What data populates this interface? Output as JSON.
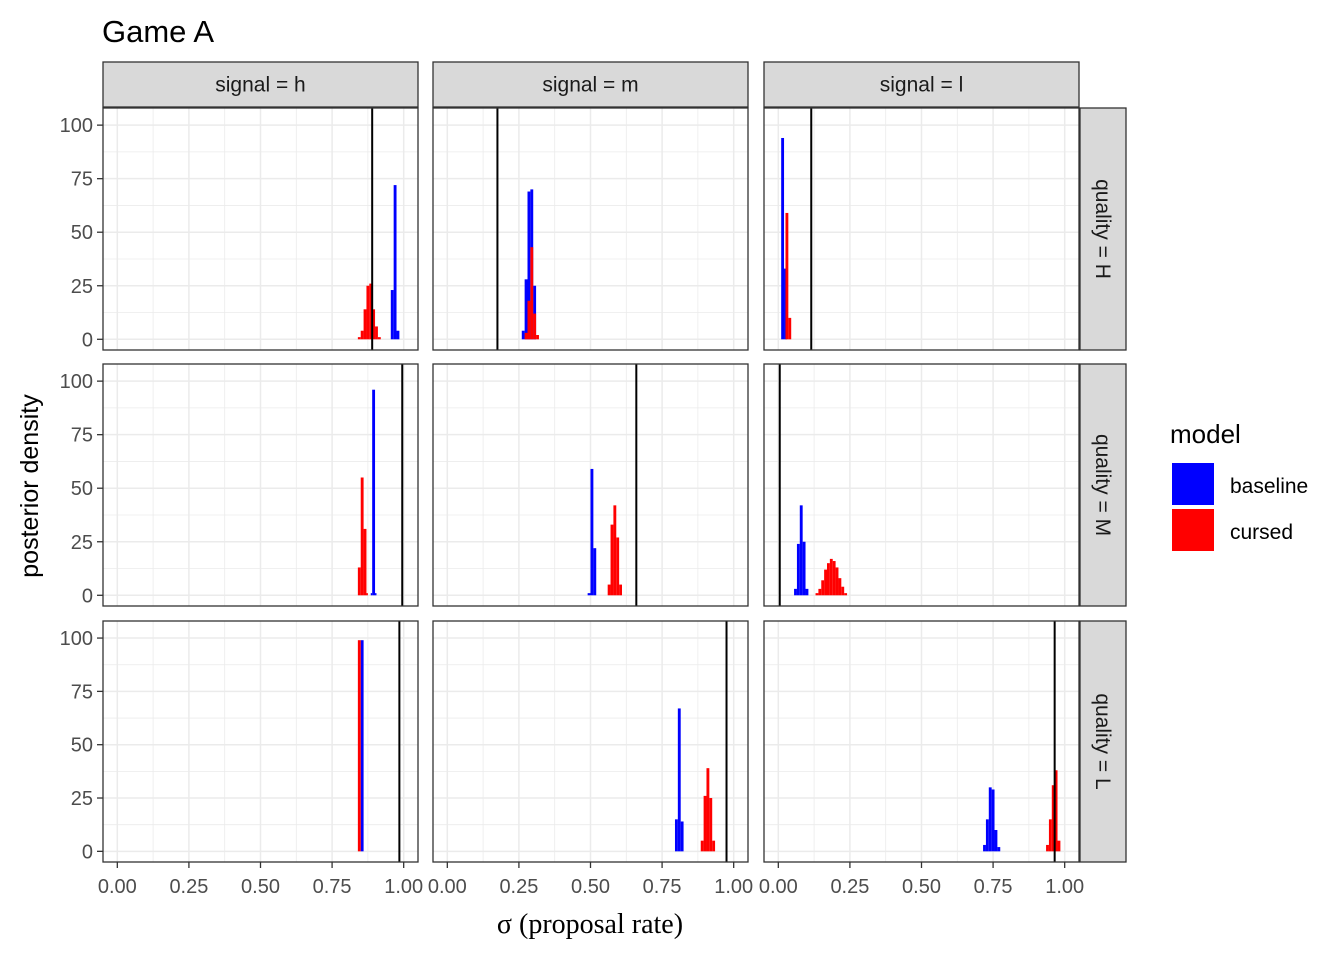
{
  "chart_data": {
    "type": "bar",
    "title": "Game A",
    "xlabel": "σ (proposal rate)",
    "ylabel": "posterior density",
    "xlim": [
      0,
      1
    ],
    "ylim": [
      0,
      100
    ],
    "x_ticks": [
      "0.00",
      "0.25",
      "0.50",
      "0.75",
      "1.00"
    ],
    "y_ticks": [
      "0",
      "25",
      "50",
      "75",
      "100"
    ],
    "grid": true,
    "col_facets": [
      "signal = h",
      "signal = m",
      "signal = l"
    ],
    "row_facets": [
      "quality = H",
      "quality = M",
      "quality = L"
    ],
    "legend": {
      "title": "model",
      "position": "right",
      "entries": [
        {
          "name": "baseline",
          "color": "#0000ff"
        },
        {
          "name": "cursed",
          "color": "#ff0000"
        }
      ]
    },
    "panels": [
      {
        "col": 0,
        "row": 0,
        "vline": 0.89,
        "series": [
          {
            "name": "baseline",
            "bars": [
              [
                0.955,
                0.965,
                23
              ],
              [
                0.965,
                0.975,
                72
              ],
              [
                0.975,
                0.985,
                4
              ]
            ]
          },
          {
            "name": "cursed",
            "bars": [
              [
                0.84,
                0.85,
                1
              ],
              [
                0.85,
                0.86,
                4
              ],
              [
                0.86,
                0.87,
                14
              ],
              [
                0.87,
                0.88,
                25
              ],
              [
                0.88,
                0.89,
                26
              ],
              [
                0.89,
                0.9,
                14
              ],
              [
                0.9,
                0.91,
                6
              ],
              [
                0.91,
                0.92,
                1
              ]
            ]
          }
        ]
      },
      {
        "col": 1,
        "row": 0,
        "vline": 0.175,
        "series": [
          {
            "name": "baseline",
            "bars": [
              [
                0.26,
                0.27,
                4
              ],
              [
                0.27,
                0.28,
                28
              ],
              [
                0.28,
                0.29,
                69
              ],
              [
                0.29,
                0.3,
                70
              ],
              [
                0.3,
                0.31,
                25
              ]
            ]
          },
          {
            "name": "cursed",
            "bars": [
              [
                0.27,
                0.28,
                3
              ],
              [
                0.28,
                0.29,
                18
              ],
              [
                0.29,
                0.3,
                43
              ],
              [
                0.3,
                0.31,
                12
              ],
              [
                0.31,
                0.32,
                2
              ]
            ]
          }
        ]
      },
      {
        "col": 2,
        "row": 0,
        "vline": 0.115,
        "series": [
          {
            "name": "baseline",
            "bars": [
              [
                0.01,
                0.02,
                94
              ],
              [
                0.02,
                0.03,
                33
              ]
            ]
          },
          {
            "name": "cursed",
            "bars": [
              [
                0.025,
                0.035,
                59
              ],
              [
                0.035,
                0.045,
                10
              ]
            ]
          }
        ]
      },
      {
        "col": 0,
        "row": 1,
        "vline": 0.995,
        "series": [
          {
            "name": "baseline",
            "bars": [
              [
                0.885,
                0.89,
                1
              ],
              [
                0.89,
                0.9,
                96
              ],
              [
                0.9,
                0.905,
                1
              ]
            ]
          },
          {
            "name": "cursed",
            "bars": [
              [
                0.84,
                0.85,
                13
              ],
              [
                0.85,
                0.86,
                55
              ],
              [
                0.86,
                0.87,
                31
              ],
              [
                0.87,
                0.875,
                1
              ]
            ]
          }
        ]
      },
      {
        "col": 1,
        "row": 1,
        "vline": 0.66,
        "series": [
          {
            "name": "baseline",
            "bars": [
              [
                0.49,
                0.5,
                1
              ],
              [
                0.5,
                0.51,
                59
              ],
              [
                0.51,
                0.52,
                22
              ]
            ]
          },
          {
            "name": "cursed",
            "bars": [
              [
                0.56,
                0.57,
                5
              ],
              [
                0.57,
                0.58,
                33
              ],
              [
                0.58,
                0.59,
                42
              ],
              [
                0.59,
                0.6,
                27
              ],
              [
                0.6,
                0.61,
                5
              ]
            ]
          }
        ]
      },
      {
        "col": 2,
        "row": 1,
        "vline": 0.005,
        "series": [
          {
            "name": "baseline",
            "bars": [
              [
                0.055,
                0.065,
                3
              ],
              [
                0.065,
                0.075,
                24
              ],
              [
                0.075,
                0.085,
                42
              ],
              [
                0.085,
                0.095,
                25
              ],
              [
                0.095,
                0.105,
                3
              ]
            ]
          },
          {
            "name": "cursed",
            "bars": [
              [
                0.13,
                0.14,
                1
              ],
              [
                0.14,
                0.15,
                3
              ],
              [
                0.15,
                0.16,
                7
              ],
              [
                0.16,
                0.17,
                12
              ],
              [
                0.17,
                0.18,
                15
              ],
              [
                0.18,
                0.19,
                17
              ],
              [
                0.19,
                0.2,
                16
              ],
              [
                0.2,
                0.21,
                13
              ],
              [
                0.21,
                0.22,
                8
              ],
              [
                0.22,
                0.23,
                4
              ],
              [
                0.23,
                0.24,
                1
              ]
            ]
          }
        ]
      },
      {
        "col": 0,
        "row": 2,
        "vline": 0.985,
        "series": [
          {
            "name": "baseline",
            "bars": [
              [
                0.85,
                0.86,
                99
              ]
            ]
          },
          {
            "name": "cursed",
            "bars": [
              [
                0.84,
                0.85,
                99
              ]
            ]
          }
        ]
      },
      {
        "col": 1,
        "row": 2,
        "vline": 0.975,
        "series": [
          {
            "name": "baseline",
            "bars": [
              [
                0.795,
                0.805,
                15
              ],
              [
                0.805,
                0.815,
                67
              ],
              [
                0.815,
                0.825,
                14
              ]
            ]
          },
          {
            "name": "cursed",
            "bars": [
              [
                0.885,
                0.895,
                5
              ],
              [
                0.895,
                0.905,
                26
              ],
              [
                0.905,
                0.915,
                39
              ],
              [
                0.915,
                0.925,
                25
              ],
              [
                0.925,
                0.935,
                5
              ]
            ]
          }
        ]
      },
      {
        "col": 2,
        "row": 2,
        "vline": 0.965,
        "series": [
          {
            "name": "baseline",
            "bars": [
              [
                0.715,
                0.725,
                3
              ],
              [
                0.725,
                0.735,
                15
              ],
              [
                0.735,
                0.745,
                30
              ],
              [
                0.745,
                0.755,
                29
              ],
              [
                0.755,
                0.765,
                10
              ],
              [
                0.765,
                0.775,
                2
              ]
            ]
          },
          {
            "name": "cursed",
            "bars": [
              [
                0.935,
                0.945,
                3
              ],
              [
                0.945,
                0.955,
                15
              ],
              [
                0.955,
                0.965,
                31
              ],
              [
                0.965,
                0.975,
                38
              ],
              [
                0.975,
                0.985,
                5
              ]
            ]
          }
        ]
      }
    ]
  }
}
